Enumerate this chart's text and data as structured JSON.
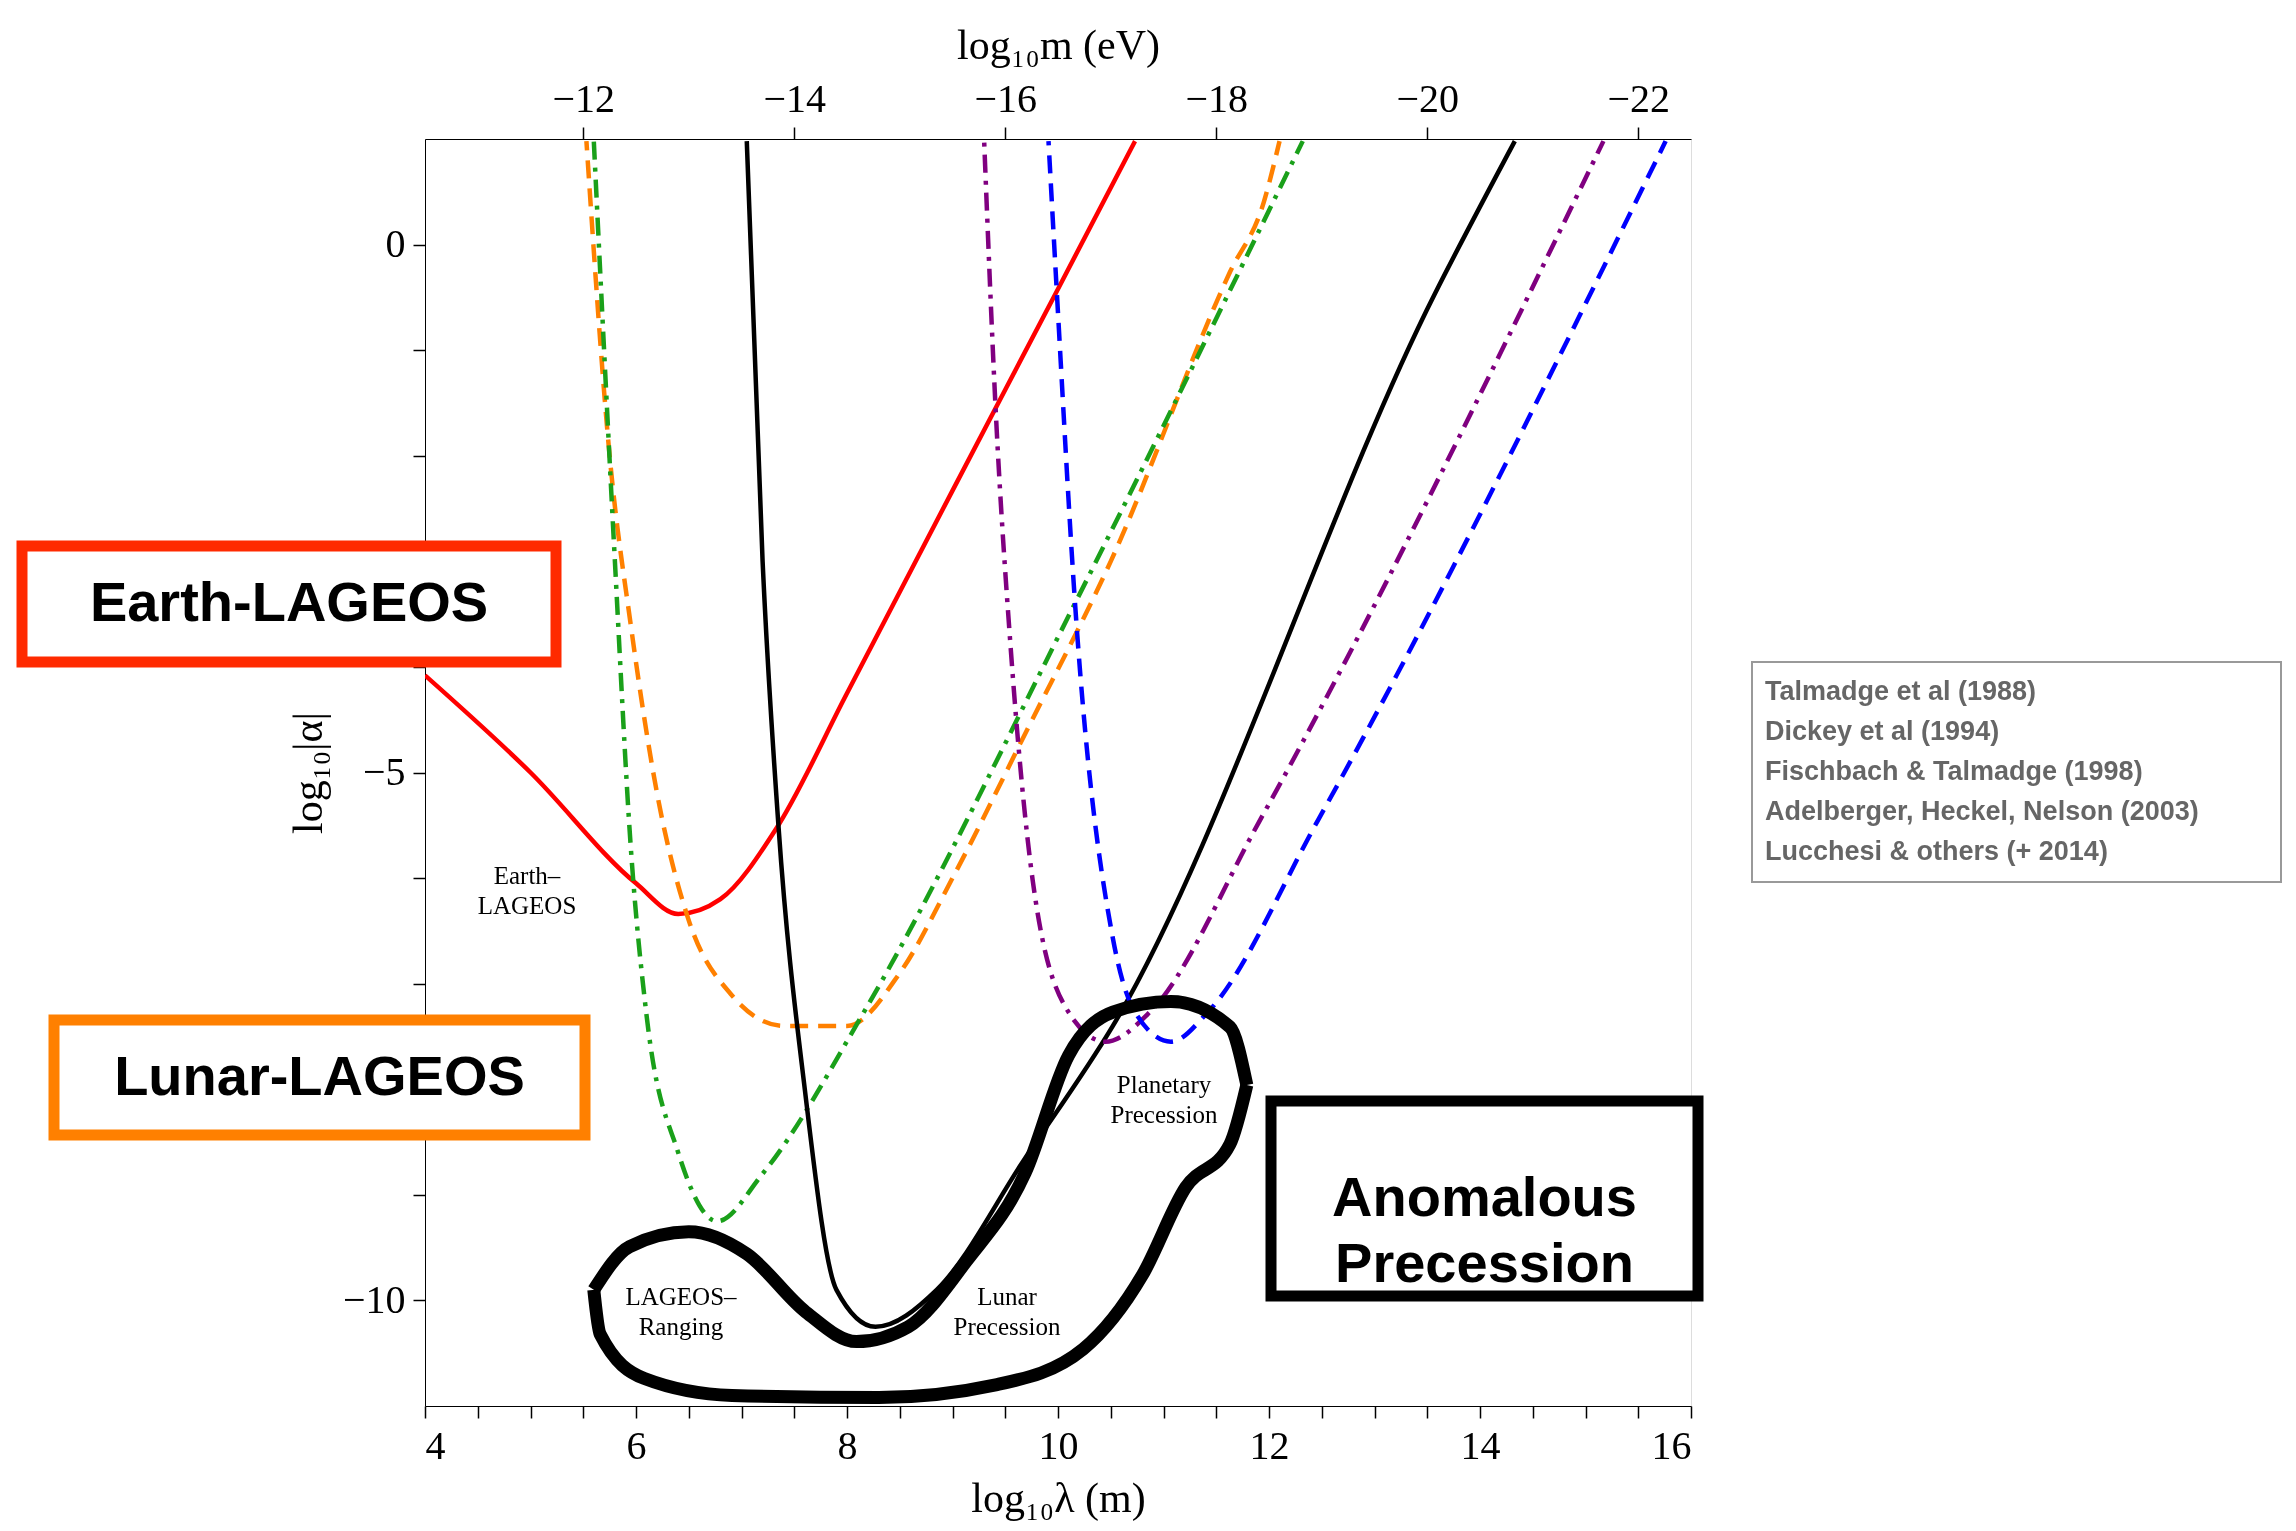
{
  "chart_data": {
    "type": "line",
    "xlabel": "log₁₀λ (m)",
    "ylabel": "log₁₀|α|",
    "x2label": "log₁₀m (eV)",
    "xlim": [
      4,
      16
    ],
    "ylim": [
      -11,
      1
    ],
    "x2lim": [
      -10.5,
      -22.5
    ],
    "xticks": [
      4,
      {
        "value": 4.5,
        "label": null
      },
      {
        "value": 5,
        "label": null
      },
      {
        "value": 5.5,
        "label": null
      },
      6,
      {
        "value": 6.5,
        "label": null
      },
      {
        "value": 7,
        "label": null
      },
      {
        "value": 7.5,
        "label": null
      },
      8,
      {
        "value": 8.5,
        "label": null
      },
      {
        "value": 9,
        "label": null
      },
      {
        "value": 9.5,
        "label": null
      },
      10,
      {
        "value": 10.5,
        "label": null
      },
      {
        "value": 11,
        "label": null
      },
      {
        "value": 11.5,
        "label": null
      },
      12,
      {
        "value": 12.5,
        "label": null
      },
      {
        "value": 13,
        "label": null
      },
      {
        "value": 13.5,
        "label": null
      },
      14,
      {
        "value": 14.5,
        "label": null
      },
      {
        "value": 15,
        "label": null
      },
      {
        "value": 15.5,
        "label": null
      },
      16
    ],
    "yticks": [
      {
        "value": -10,
        "label": "−10"
      },
      {
        "value": -9,
        "label": null
      },
      {
        "value": -8,
        "label": null
      },
      {
        "value": -7,
        "label": null
      },
      {
        "value": -6,
        "label": null
      },
      {
        "value": -5,
        "label": "−5"
      },
      {
        "value": -4,
        "label": null
      },
      {
        "value": -3,
        "label": null
      },
      {
        "value": -2,
        "label": null
      },
      {
        "value": -1,
        "label": null
      },
      0
    ],
    "x2ticks": [
      {
        "value": -12,
        "label": "−12"
      },
      {
        "value": -14,
        "label": "−14"
      },
      {
        "value": -16,
        "label": "−16"
      },
      {
        "value": -18,
        "label": "−18"
      },
      {
        "value": -20,
        "label": "−20"
      },
      {
        "value": -22,
        "label": "−22"
      }
    ],
    "grid": false,
    "legend": false,
    "series": [
      {
        "color": "#ff0000",
        "line_style": "solid",
        "x": [
          4,
          5,
          6,
          6.4,
          6.8,
          7.33,
          8,
          9,
          10,
          10.73
        ],
        "values": [
          -4.08,
          -5.0,
          -6.05,
          -6.34,
          -6.2,
          -5.53,
          -4.25,
          -2.33,
          -0.42,
          0.98
        ]
      },
      {
        "color": "#ff8000",
        "line_style": "dashed",
        "x": [
          5.53,
          5.75,
          5.95,
          6.2,
          6.5,
          6.9,
          7.4,
          8.0,
          8.5,
          9.0,
          9.69,
          10.5,
          11.63,
          11.95,
          12.1
        ],
        "values": [
          0.98,
          -2,
          -3.6,
          -5.2,
          -6.4,
          -7.1,
          -7.4,
          -7.4,
          -6.9,
          -6.0,
          -4.63,
          -3.0,
          -0.26,
          0.4,
          0.98
        ]
      },
      {
        "color": "#1aa01a",
        "line_style": "dashdot",
        "x": [
          5.6,
          5.8,
          5.95,
          6.1,
          6.4,
          6.77,
          7.2,
          8.16,
          10.17,
          12.32
        ],
        "values": [
          0.98,
          -3,
          -5.7,
          -7.3,
          -8.6,
          -9.25,
          -8.8,
          -7.27,
          -3.38,
          0.98
        ]
      },
      {
        "color": "#000000",
        "line_style": "solid",
        "x": [
          7.05,
          7.2,
          7.35,
          7.6,
          7.9,
          8.27,
          8.85,
          9.69,
          10.52,
          13.57,
          14.33
        ],
        "values": [
          0.98,
          -3,
          -5.5,
          -8,
          -9.9,
          -10.25,
          -9.9,
          -8.65,
          -7.4,
          -0.47,
          0.98
        ]
      },
      {
        "color": "#800080",
        "line_style": "dashdot",
        "x": [
          9.3,
          9.41,
          9.55,
          9.76,
          10.1,
          10.45,
          10.87,
          11.91,
          15.17
        ],
        "values": [
          0.98,
          -1.58,
          -3.8,
          -6.02,
          -7.27,
          -7.55,
          -7.27,
          -5.46,
          0.98
        ]
      },
      {
        "color": "#0000ff",
        "line_style": "dashed",
        "x": [
          9.91,
          9.99,
          10.17,
          10.52,
          10.73,
          11.07,
          11.42,
          12.46,
          15.76
        ],
        "values": [
          0.98,
          -0.47,
          -3.52,
          -6.57,
          -7.27,
          -7.55,
          -7.27,
          -5.46,
          0.98
        ]
      },
      {
        "color": "#000000",
        "line_style": "solid",
        "x": [
          5.6,
          5.94,
          6.5,
          7.05,
          7.61,
          8.09,
          8.58,
          9.13,
          9.69,
          10.1,
          10.52,
          11.07,
          11.63,
          11.79
        ],
        "values": [
          -9.9,
          -9.49,
          -9.35,
          -9.56,
          -10.11,
          -10.39,
          -10.25,
          -9.63,
          -8.79,
          -7.68,
          -7.27,
          -7.17,
          -7.41,
          -7.96
        ]
      },
      {
        "color": "#000000",
        "line_style": "solid",
        "x": [
          5.6,
          5.66,
          6.08,
          6.91,
          8.3,
          9.41,
          10.24,
          10.8,
          11.21,
          11.63,
          11.79
        ],
        "values": [
          -9.9,
          -10.32,
          -10.74,
          -10.9,
          -10.92,
          -10.8,
          -10.46,
          -9.76,
          -8.93,
          -8.52,
          -7.96
        ]
      }
    ],
    "annotations": [
      "Earth–\nLAGEOS",
      "LAGEOS–\nRanging",
      "Lunar\nPrecession",
      "Planetary\nPrecession",
      "Earth-LAGEOS",
      "Lunar-LAGEOS",
      "Anomalous\nPrecession",
      "Talmadge et al  (1988)",
      "Dickey et al  (1994)",
      "Fischbach & Talmadge  (1998)",
      "Adelberger, Heckel, Nelson (2003)",
      "Lucchesi & others (+ 2014)"
    ]
  }
}
